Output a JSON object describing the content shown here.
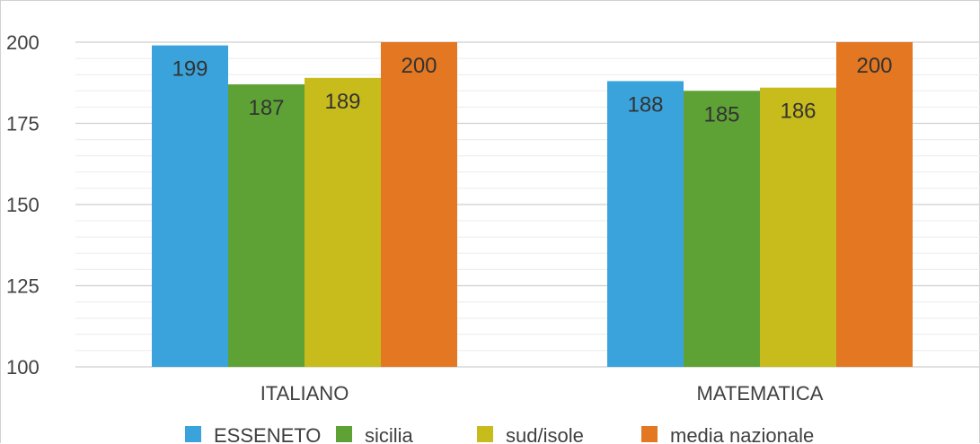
{
  "chart_data": {
    "type": "bar",
    "categories": [
      "ITALIANO",
      "MATEMATICA"
    ],
    "series": [
      {
        "name": "ESSENETO",
        "values": [
          199,
          188
        ],
        "color": "#3aa3dc"
      },
      {
        "name": "sicilia",
        "values": [
          187,
          185
        ],
        "color": "#5ea236"
      },
      {
        "name": "sud/isole",
        "values": [
          189,
          186
        ],
        "color": "#c8bc1c"
      },
      {
        "name": "media nazionale",
        "values": [
          200,
          200
        ],
        "color": "#e37722"
      }
    ],
    "data_labels": [
      [
        "199",
        "188"
      ],
      [
        "187",
        "185"
      ],
      [
        "189",
        "186"
      ],
      [
        "200",
        "200"
      ]
    ],
    "title": "",
    "xlabel": "",
    "ylabel": "",
    "ylim": [
      100,
      200
    ],
    "yticks": [
      100,
      125,
      150,
      175,
      200
    ],
    "grid": true,
    "legend": "bottom"
  }
}
